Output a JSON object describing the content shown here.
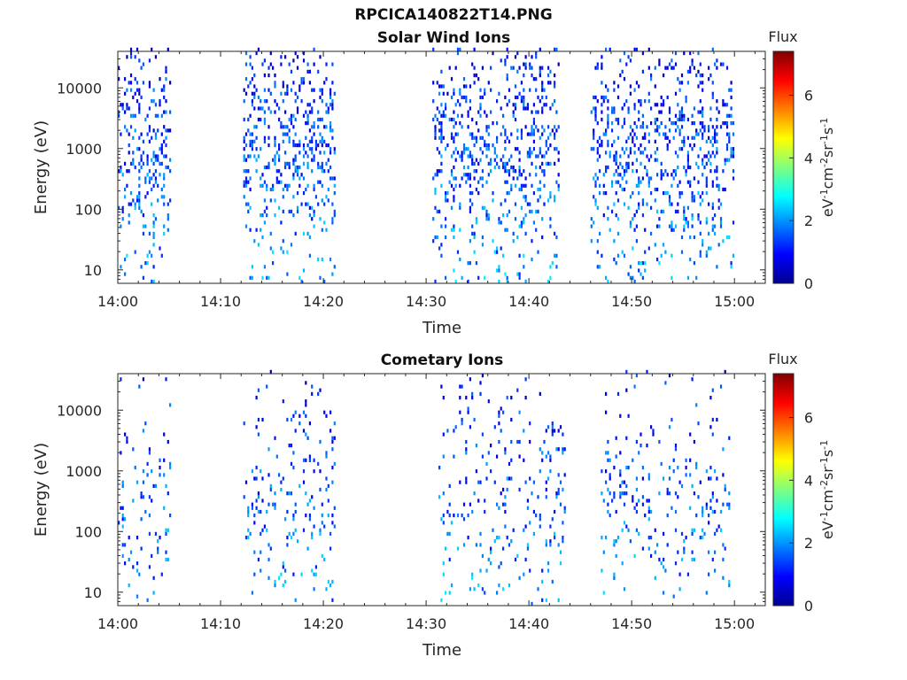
{
  "figure": {
    "title": "RPCICA140822T14.PNG"
  },
  "chart_data": [
    {
      "type": "heatmap",
      "title": "Solar Wind Ions",
      "xlabel": "Time",
      "ylabel": "Energy (eV)",
      "x_ticks": [
        "14:00",
        "14:10",
        "14:20",
        "14:30",
        "14:40",
        "14:50",
        "15:00"
      ],
      "xlim": [
        "14:00",
        "15:03"
      ],
      "y_scale": "log",
      "y_ticks": [
        "10",
        "100",
        "1000",
        "10000"
      ],
      "ylim": [
        6,
        40000
      ],
      "colorbar": {
        "label": "Flux",
        "unit": "eV-1cm-2sr-1s-1",
        "range": [
          0,
          7.4
        ],
        "ticks": [
          "0",
          "2",
          "4",
          "6"
        ]
      },
      "active_intervals_min": [
        [
          0,
          5.2
        ],
        [
          12,
          21
        ],
        [
          30.5,
          43
        ],
        [
          46,
          60
        ]
      ],
      "peak_energy_eV": 1000,
      "typical_flux": 2
    },
    {
      "type": "heatmap",
      "title": "Cometary Ions",
      "xlabel": "Time",
      "ylabel": "Energy (eV)",
      "x_ticks": [
        "14:00",
        "14:10",
        "14:20",
        "14:30",
        "14:40",
        "14:50",
        "15:00"
      ],
      "xlim": [
        "14:00",
        "15:03"
      ],
      "y_scale": "log",
      "y_ticks": [
        "10",
        "100",
        "1000",
        "10000"
      ],
      "ylim": [
        6,
        40000
      ],
      "colorbar": {
        "label": "Flux",
        "unit": "eV-1cm-2sr-1s-1",
        "range": [
          0,
          7.4
        ],
        "ticks": [
          "0",
          "2",
          "4",
          "6"
        ]
      },
      "active_intervals_min": [
        [
          0,
          5.2
        ],
        [
          12,
          21
        ],
        [
          31,
          43.5
        ],
        [
          47,
          59.5
        ]
      ],
      "peak_energy_eV": 300,
      "typical_flux": 2
    }
  ]
}
